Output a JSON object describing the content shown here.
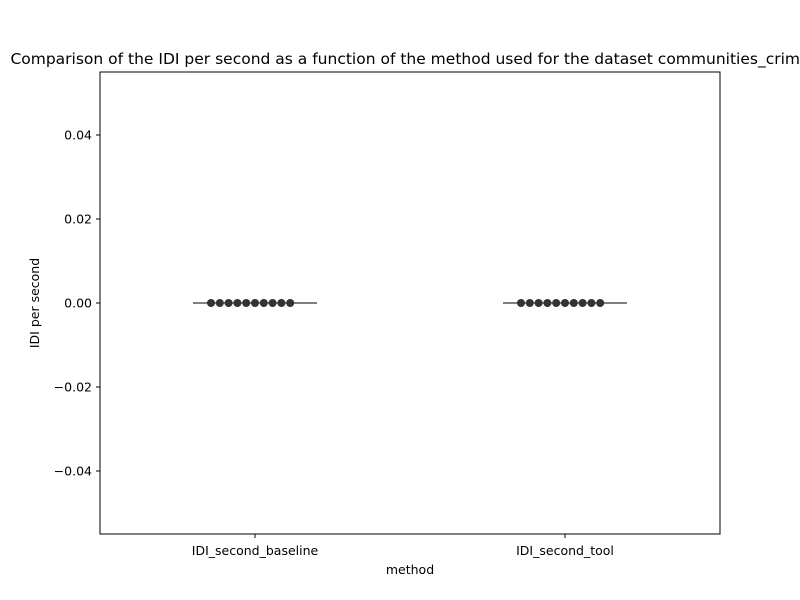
{
  "chart_data": {
    "type": "scatter",
    "title": "Comparison of the IDI per second as a function of the method used for the dataset communities_crime",
    "xlabel": "method",
    "ylabel": "IDI per second",
    "categories": [
      "IDI_second_baseline",
      "IDI_second_tool"
    ],
    "ylim": [
      -0.055,
      0.055
    ],
    "yticks": [
      -0.04,
      -0.02,
      0.0,
      0.02,
      0.04
    ],
    "ytick_labels": [
      "−0.04",
      "−0.02",
      "0.00",
      "0.02",
      "0.04"
    ],
    "grid": false,
    "legend": "none",
    "series": [
      {
        "category": "IDI_second_baseline",
        "values": [
          0,
          0,
          0,
          0,
          0,
          0,
          0,
          0,
          0,
          0
        ]
      },
      {
        "category": "IDI_second_tool",
        "values": [
          0,
          0,
          0,
          0,
          0,
          0,
          0,
          0,
          0,
          0
        ]
      }
    ],
    "median": [
      0,
      0
    ],
    "colors": {
      "points": "#333333",
      "median_line": "#555555",
      "axes": "#000000"
    }
  }
}
